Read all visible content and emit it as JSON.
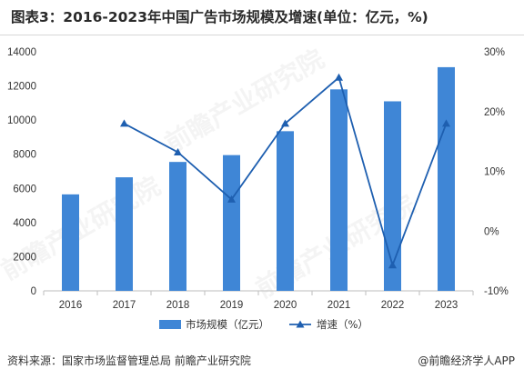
{
  "title": "图表3：2016-2023年中国广告市场规模及增速(单位：亿元，%)",
  "source": "资料来源：国家市场监督管理总局 前瞻产业研究院",
  "brand": "@前瞻经济学人APP",
  "watermark": "前瞻产业研究院",
  "chart_data": {
    "type": "bar",
    "categories": [
      "2016",
      "2017",
      "2018",
      "2019",
      "2020",
      "2021",
      "2022",
      "2023"
    ],
    "series": [
      {
        "name": "市场规模（亿元）",
        "type": "bar",
        "axis": "left",
        "color": "#3f86d6",
        "values": [
          5650,
          6650,
          7550,
          7950,
          9350,
          11800,
          11100,
          13100
        ]
      },
      {
        "name": "增速（%）",
        "type": "line",
        "axis": "right",
        "color": "#1e5fb0",
        "values": [
          null,
          18.0,
          13.2,
          5.3,
          18.0,
          25.7,
          -5.7,
          18.0
        ]
      }
    ],
    "y_left": {
      "min": 0,
      "max": 14000,
      "ticks": [
        "0",
        "2000",
        "4000",
        "6000",
        "8000",
        "10000",
        "12000",
        "14000"
      ]
    },
    "y_right": {
      "min": -10,
      "max": 30,
      "ticks": [
        "-10%",
        "0%",
        "10%",
        "20%",
        "30%"
      ]
    },
    "grid": false,
    "legend_position": "bottom"
  }
}
